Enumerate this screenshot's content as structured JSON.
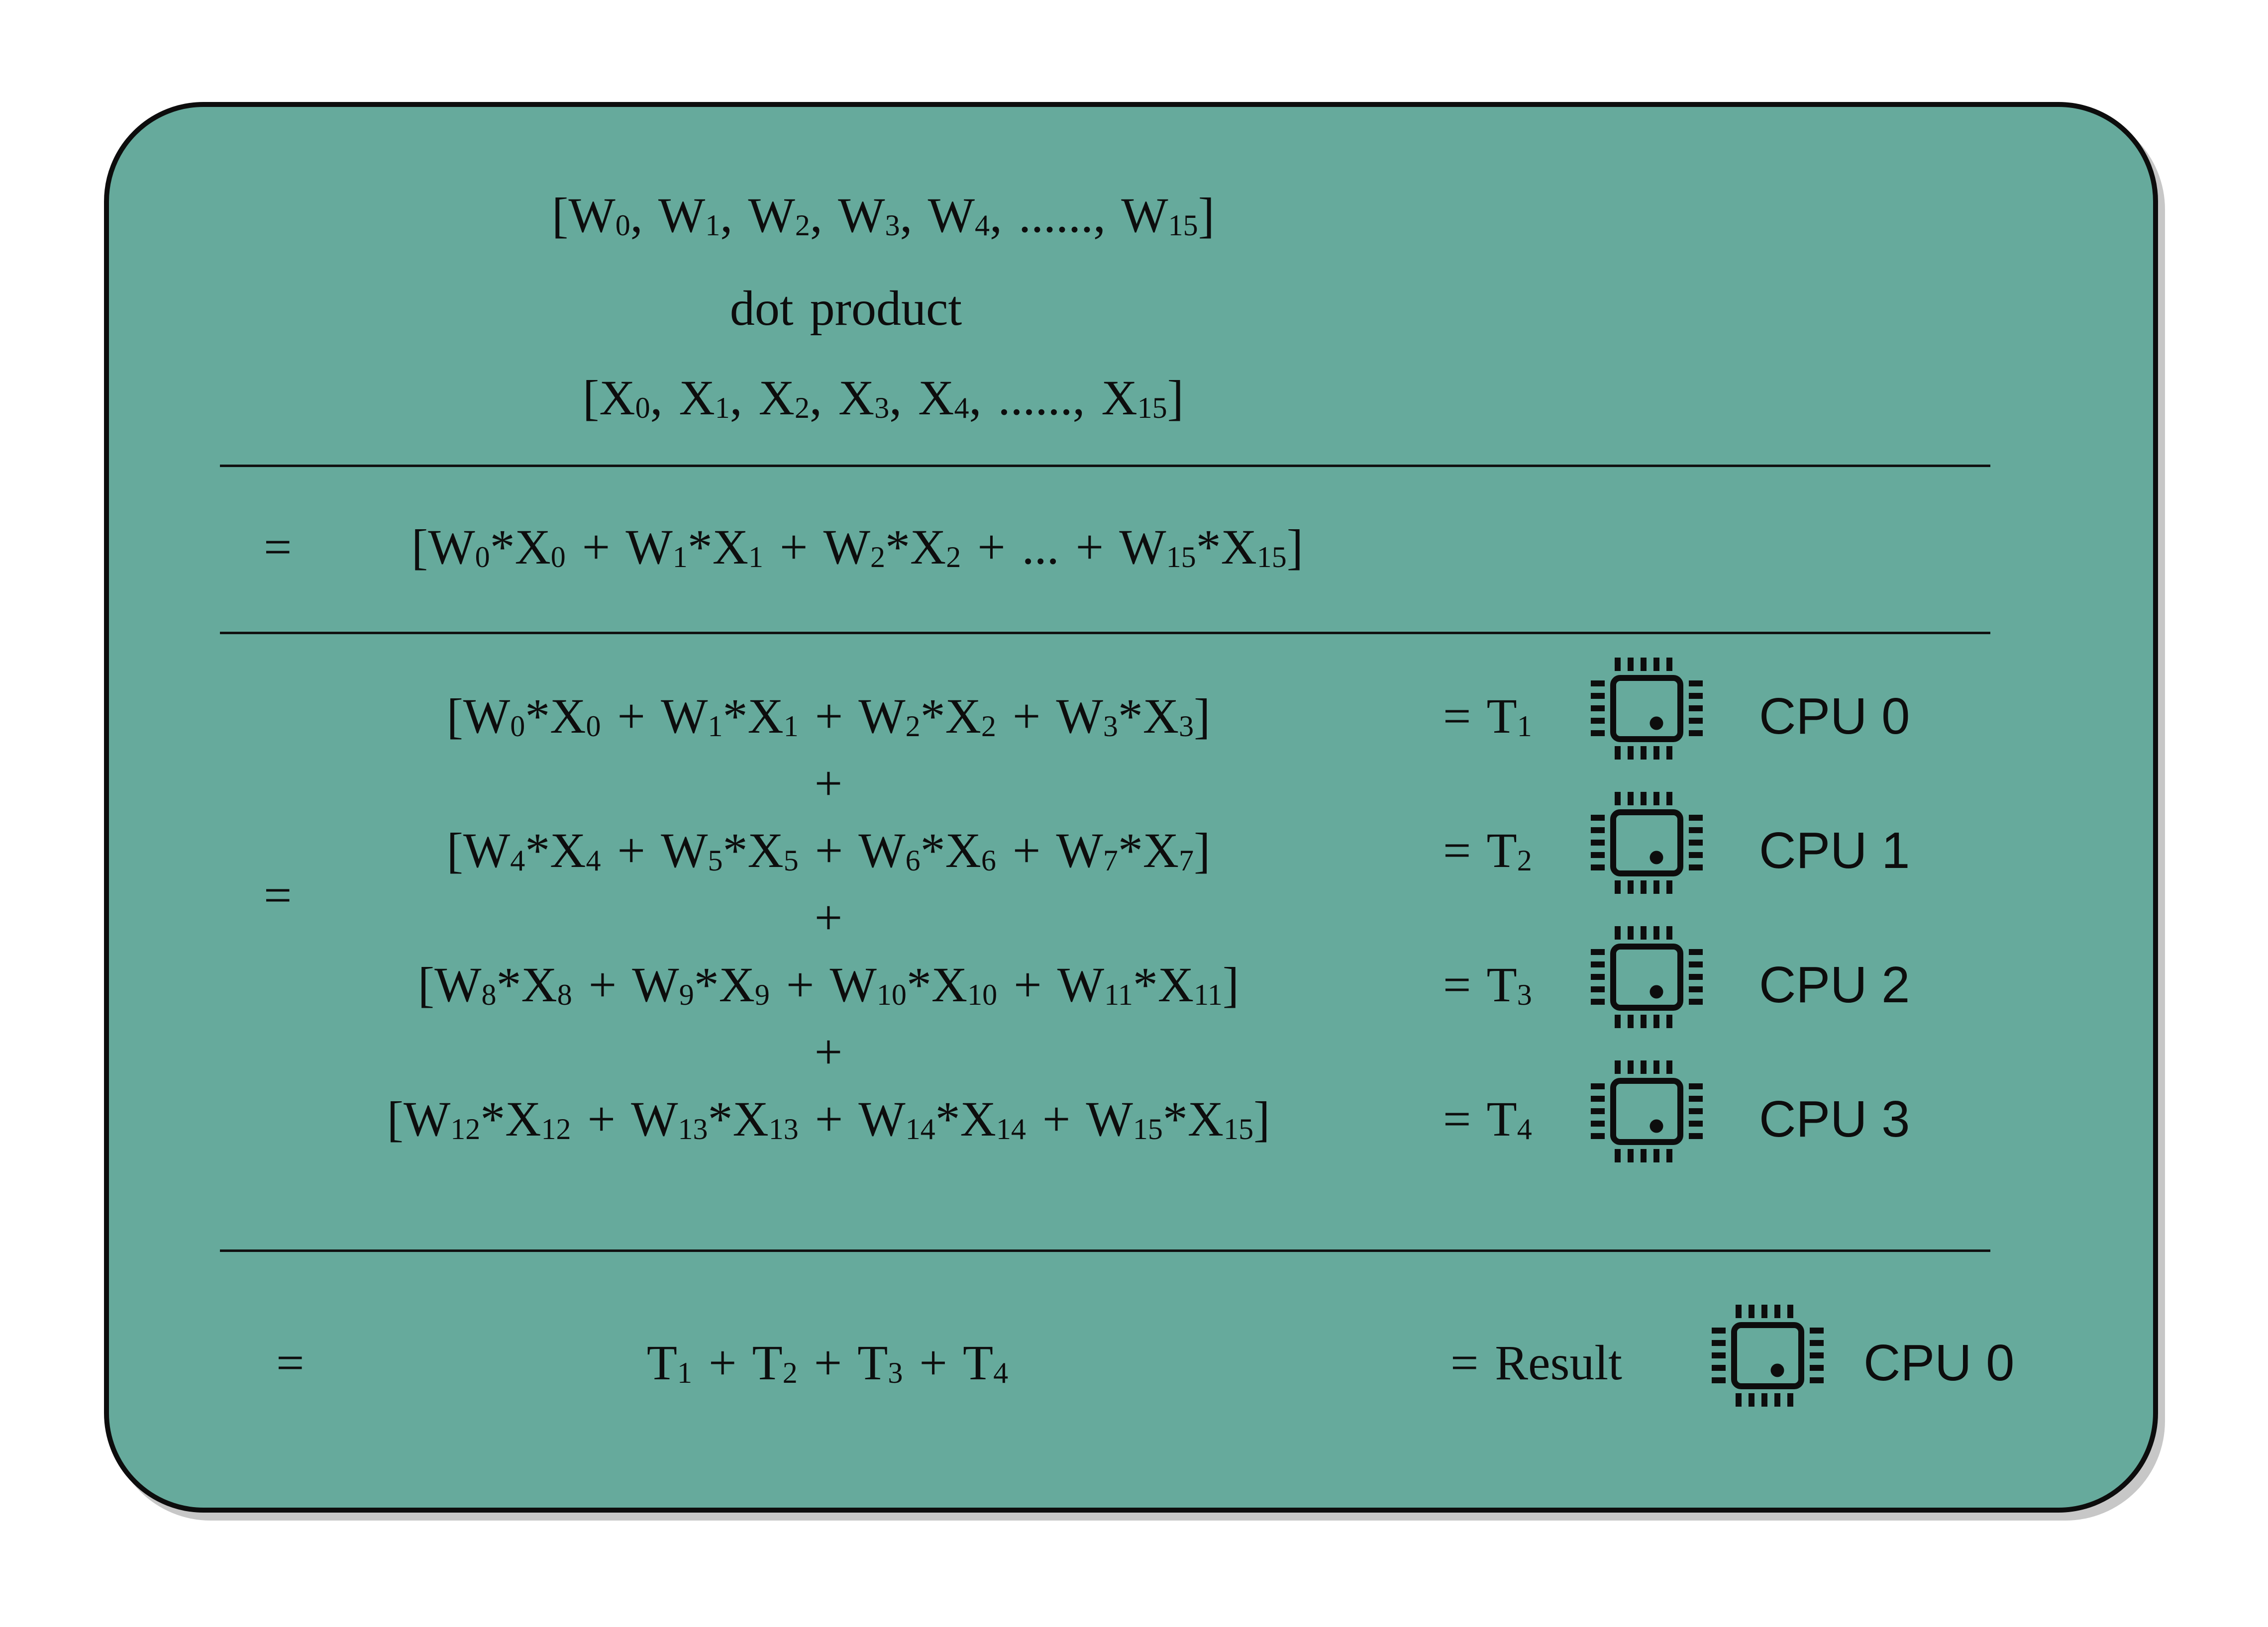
{
  "colors": {
    "page_background": "#ffffff",
    "panel_background": "#66aa9c",
    "ink": "#0d0d0d",
    "panel_shadow": "#c7c7c7"
  },
  "panel": {
    "header": {
      "w_vector": "[W_0_, W_1_, W_2_, W_3_, W_4_, ......, W_15_]",
      "operation": "dot product",
      "x_vector": "[X_0_, X_1_, X_2_, X_3_, X_4_, ......, X_15_]"
    },
    "combined": {
      "equals": "=",
      "formula": "[W_0_*X_0_ + W_1_*X_1_ + W_2_*X_2_ + ... + W_15_*X_15_]"
    },
    "distributed": {
      "equals": "=",
      "plus": "+",
      "rows": [
        {
          "formula": "[W_0_*X_0_ + W_1_*X_1_ + W_2_*X_2_ + W_3_*X_3_]",
          "result": "= T_1_",
          "cpu": "CPU 0"
        },
        {
          "formula": "[W_4_*X_4_ + W_5_*X_5_ + W_6_*X_6_ + W_7_*X_7_]",
          "result": "= T_2_",
          "cpu": "CPU 1"
        },
        {
          "formula": "[W_8_*X_8_ + W_9_*X_9_ + W_10_*X_10_ + W_11_*X_11_]",
          "result": "= T_3_",
          "cpu": "CPU 2"
        },
        {
          "formula": "[W_12_*X_12_ + W_13_*X_13_ + W_14_*X_14_ + W_15_*X_15_]",
          "result": "= T_4_",
          "cpu": "CPU 3"
        }
      ]
    },
    "reduction": {
      "equals": "=",
      "formula": "T_1_ + T_2_ + T_3_ + T_4_",
      "result": "= Result",
      "cpu": "CPU 0"
    }
  }
}
